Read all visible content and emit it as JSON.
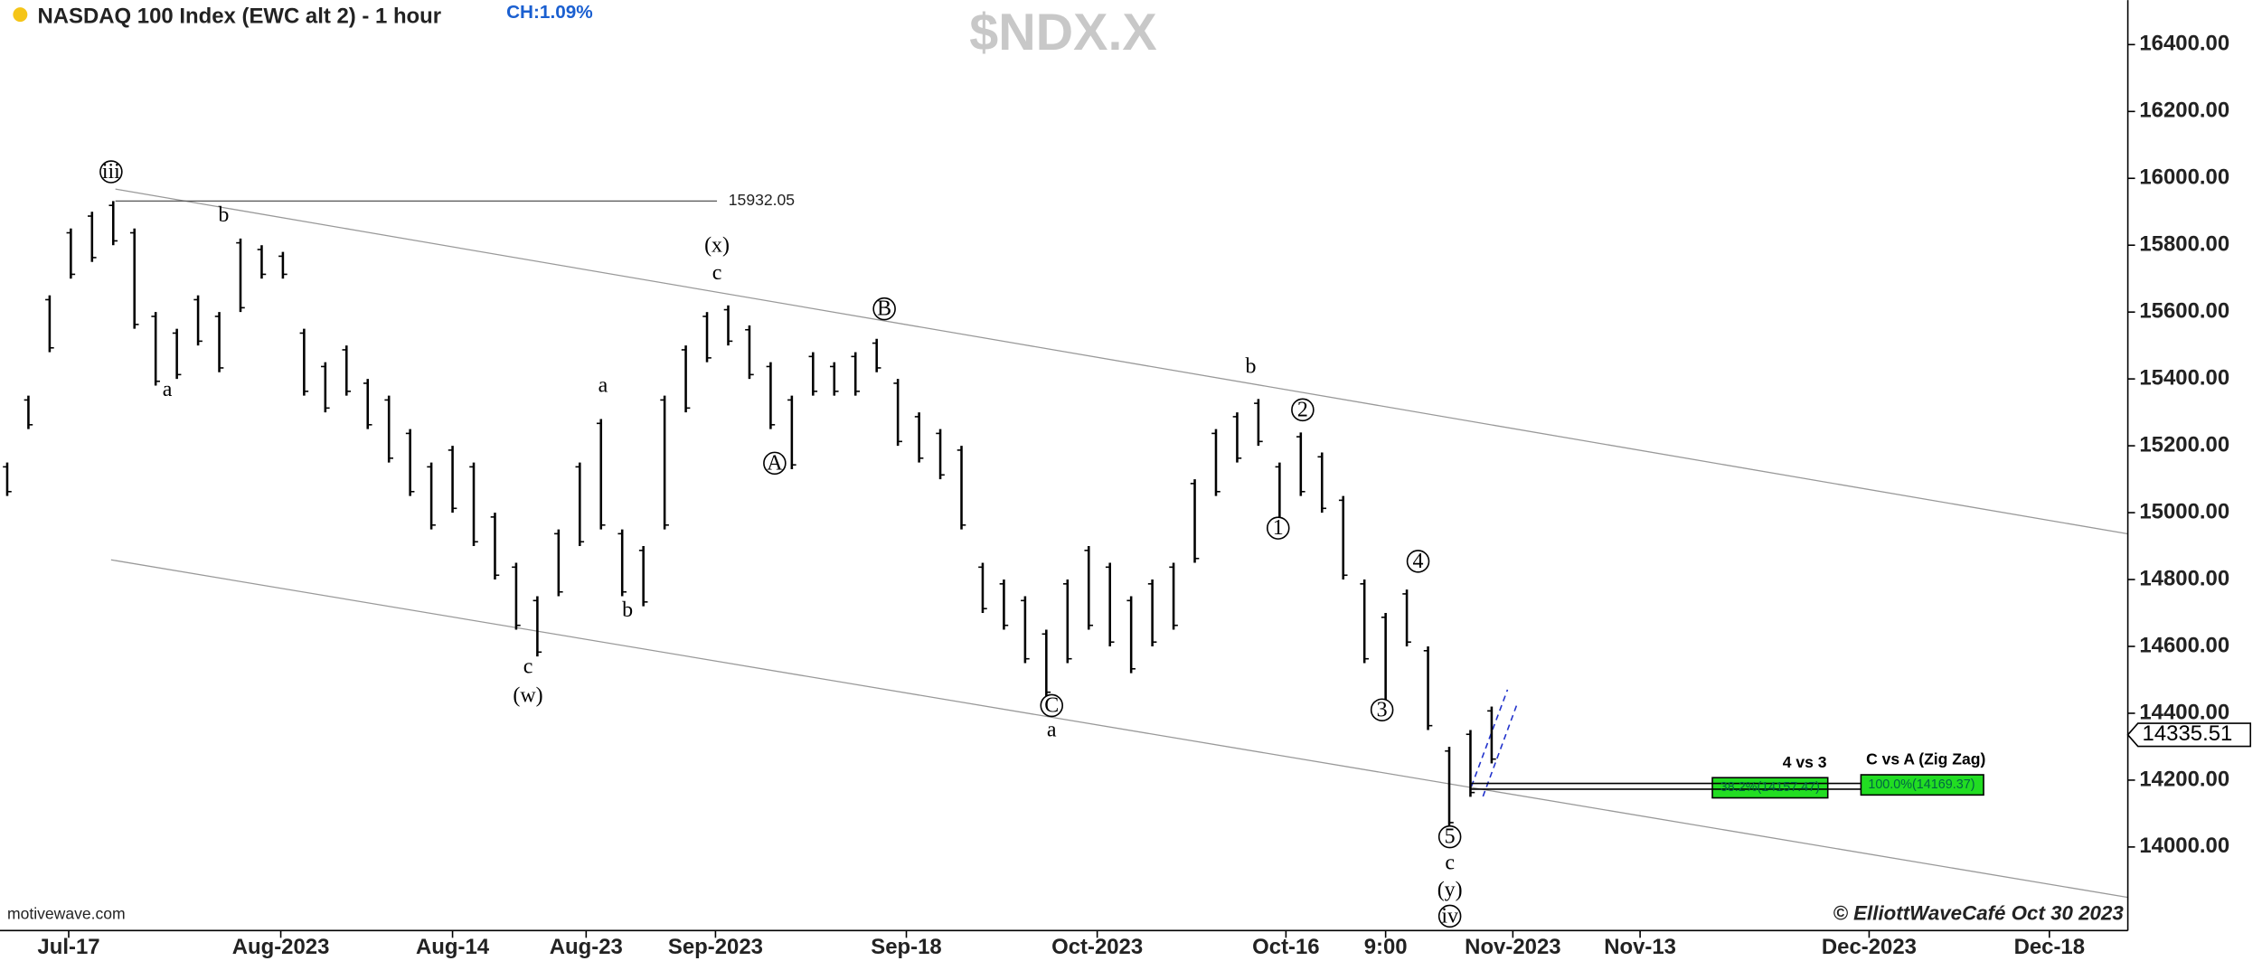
{
  "chart_data": {
    "type": "ohlc",
    "title": "NASDAQ 100 Index (EWC alt 2) - 1 hour",
    "change": "CH:1.09%",
    "watermark": "$NDX.X",
    "footer_left": "motivewave.com",
    "footer_right": "© ElliottWaveCafé Oct 30 2023",
    "color": "#000000",
    "x": [
      0,
      1,
      2,
      3,
      4,
      5,
      6,
      7,
      8,
      9,
      10,
      11,
      12,
      13,
      14,
      15,
      16,
      17,
      18,
      19,
      20,
      21,
      22,
      23,
      24,
      25,
      26,
      27,
      28,
      29,
      30,
      31,
      32,
      33,
      34,
      35,
      36,
      37,
      38,
      39,
      40,
      41,
      42,
      43,
      44,
      45,
      46,
      47,
      48,
      49,
      50,
      51,
      52,
      53,
      54,
      55,
      56,
      57,
      58,
      59,
      60,
      61,
      62,
      63,
      64,
      65,
      66,
      67,
      68,
      69,
      70
    ],
    "high": [
      15150,
      15350,
      15650,
      15850,
      15900,
      15932,
      15850,
      15600,
      15550,
      15650,
      15600,
      15820,
      15800,
      15780,
      15550,
      15450,
      15500,
      15400,
      15350,
      15250,
      15150,
      15200,
      15150,
      15000,
      14850,
      14750,
      14950,
      15150,
      15280,
      14950,
      14900,
      15350,
      15500,
      15600,
      15620,
      15560,
      15450,
      15350,
      15480,
      15450,
      15480,
      15520,
      15400,
      15300,
      15250,
      15200,
      14850,
      14800,
      14750,
      14650,
      14800,
      14900,
      14850,
      14750,
      14800,
      14850,
      15100,
      15250,
      15300,
      15340,
      15150,
      15240,
      15180,
      15050,
      14800,
      14700,
      14770,
      14600,
      14300,
      14350,
      14420
    ],
    "low": [
      15050,
      15250,
      15480,
      15700,
      15750,
      15800,
      15550,
      15380,
      15400,
      15500,
      15420,
      15600,
      15700,
      15700,
      15350,
      15300,
      15350,
      15250,
      15150,
      15050,
      14950,
      15000,
      14900,
      14800,
      14650,
      14570,
      14750,
      14900,
      14950,
      14750,
      14720,
      14950,
      15300,
      15450,
      15500,
      15400,
      15250,
      15130,
      15350,
      15350,
      15350,
      15420,
      15200,
      15150,
      15100,
      14950,
      14700,
      14650,
      14550,
      14450,
      14550,
      14650,
      14600,
      14520,
      14600,
      14650,
      14850,
      15050,
      15150,
      15200,
      14950,
      15050,
      15000,
      14800,
      14550,
      14400,
      14600,
      14350,
      14060,
      14150,
      14250
    ],
    "xlim": [
      0,
      100
    ],
    "xticks": [
      {
        "value": 2.9,
        "label": "Jul-17"
      },
      {
        "value": 12.9,
        "label": "Aug-2023"
      },
      {
        "value": 21,
        "label": "Aug-14"
      },
      {
        "value": 27.3,
        "label": "Aug-23"
      },
      {
        "value": 33.4,
        "label": "Sep-2023"
      },
      {
        "value": 42.4,
        "label": "Sep-18"
      },
      {
        "value": 51.4,
        "label": "Oct-2023"
      },
      {
        "value": 60.3,
        "label": "Oct-16"
      },
      {
        "value": 65,
        "label": "9:00"
      },
      {
        "value": 71,
        "label": "Nov-2023"
      },
      {
        "value": 77,
        "label": "Nov-13"
      },
      {
        "value": 87.8,
        "label": "Dec-2023"
      },
      {
        "value": 96.3,
        "label": "Dec-18"
      }
    ],
    "ylim": [
      13750,
      16533
    ],
    "yticks": [
      {
        "value": 14000,
        "label": "14000.00"
      },
      {
        "value": 14200,
        "label": "14200.00"
      },
      {
        "value": 14400,
        "label": "14400.00"
      },
      {
        "value": 14600,
        "label": "14600.00"
      },
      {
        "value": 14800,
        "label": "14800.00"
      },
      {
        "value": 15000,
        "label": "15000.00"
      },
      {
        "value": 15200,
        "label": "15200.00"
      },
      {
        "value": 15400,
        "label": "15400.00"
      },
      {
        "value": 15600,
        "label": "15600.00"
      },
      {
        "value": 15800,
        "label": "15800.00"
      },
      {
        "value": 16000,
        "label": "16000.00"
      },
      {
        "value": 16200,
        "label": "16200.00"
      },
      {
        "value": 16400,
        "label": "16400.00"
      }
    ],
    "last_price": 14335.51,
    "high_line": 15932.05,
    "annotations": [
      "iii",
      "b",
      "a",
      "c",
      "(w)",
      "a",
      "b",
      "(x)",
      "c",
      "B",
      "A",
      "b",
      "2",
      "1",
      "4",
      "3",
      "C",
      "a",
      "5",
      "c",
      "(y)",
      "iv"
    ],
    "fib": [
      {
        "title": "4 vs 3",
        "label": "38.2%(14157.47)"
      },
      {
        "title": "C vs A (Zig Zag)",
        "label": "100.0%(14169.37)"
      }
    ]
  }
}
